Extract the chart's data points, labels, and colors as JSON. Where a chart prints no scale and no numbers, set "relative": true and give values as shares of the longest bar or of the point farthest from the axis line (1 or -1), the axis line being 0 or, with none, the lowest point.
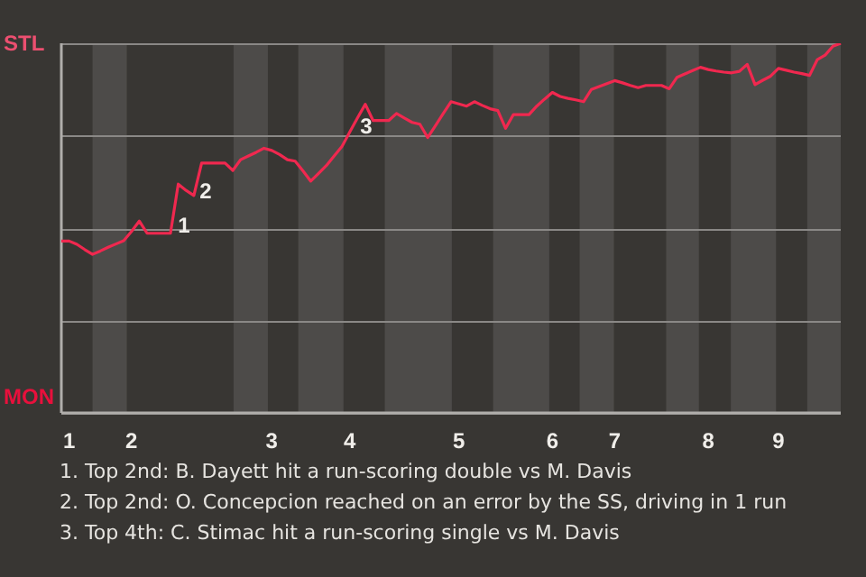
{
  "chart_data": {
    "type": "line",
    "relative": true,
    "categories": [
      null,
      "1",
      null,
      null,
      null,
      null,
      null,
      null,
      null,
      "2",
      null,
      null,
      null,
      null,
      null,
      null,
      null,
      null,
      null,
      null,
      null,
      null,
      null,
      null,
      null,
      null,
      null,
      "3",
      null,
      null,
      null,
      null,
      null,
      null,
      null,
      null,
      null,
      "4",
      null,
      null,
      null,
      null,
      null,
      null,
      null,
      null,
      null,
      null,
      null,
      null,
      null,
      "5",
      null,
      null,
      null,
      null,
      null,
      null,
      null,
      null,
      null,
      null,
      null,
      "6",
      null,
      null,
      null,
      null,
      null,
      null,
      null,
      "7",
      null,
      null,
      null,
      null,
      null,
      null,
      null,
      null,
      null,
      null,
      null,
      "8",
      null,
      null,
      null,
      null,
      null,
      null,
      null,
      null,
      "9",
      null,
      null,
      null,
      null,
      null,
      null,
      null,
      null
    ],
    "series": [
      {
        "color": "#f0284f",
        "values": [
          0.465,
          0.465,
          0.456,
          0.442,
          0.429,
          0.438,
          0.448,
          0.457,
          0.466,
          0.491,
          0.519,
          0.486,
          0.486,
          0.486,
          0.486,
          0.619,
          0.602,
          0.588,
          0.676,
          0.676,
          0.676,
          0.676,
          0.656,
          0.685,
          0.695,
          0.705,
          0.716,
          0.71,
          0.699,
          0.685,
          0.681,
          0.655,
          0.627,
          0.648,
          0.669,
          0.695,
          0.721,
          0.76,
          0.798,
          0.835,
          0.791,
          0.791,
          0.791,
          0.81,
          0.798,
          0.786,
          0.781,
          0.745,
          0.777,
          0.81,
          0.842,
          0.836,
          0.83,
          0.842,
          0.832,
          0.823,
          0.818,
          0.77,
          0.807,
          0.807,
          0.807,
          0.83,
          0.849,
          0.867,
          0.856,
          0.851,
          0.847,
          0.842,
          0.875,
          0.883,
          0.891,
          0.899,
          0.893,
          0.886,
          0.88,
          0.886,
          0.886,
          0.886,
          0.877,
          0.908,
          0.917,
          0.926,
          0.935,
          0.929,
          0.925,
          0.922,
          0.92,
          0.924,
          0.943,
          0.888,
          0.9,
          0.911,
          0.932,
          0.927,
          0.922,
          0.918,
          0.913,
          0.956,
          0.968,
          0.992,
          1
        ]
      }
    ],
    "grid": "y",
    "legend": false,
    "marker": "none",
    "line_style": "solid",
    "annotations": [
      "STL",
      "MON",
      "1",
      "2",
      "3",
      "1. Top 2nd: B. Dayett hit a run-scoring double vs M. Davis",
      "2. Top 2nd: O. Concepcion reached on an error by the SS, driving in 1 run",
      "3. Top 4th: C. Stimac hit a run-scoring single vs M. Davis"
    ]
  }
}
